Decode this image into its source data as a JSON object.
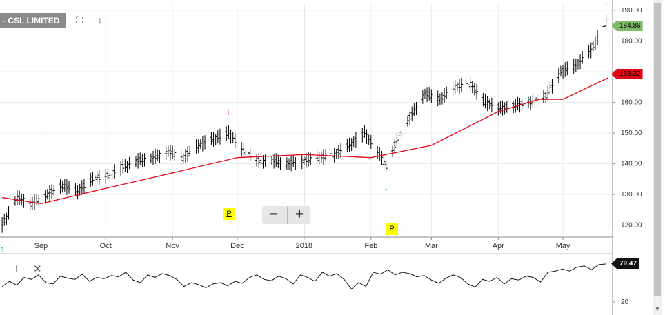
{
  "header": {
    "title": "- CSL LIMITED",
    "fullscreen_icon": "fullscreen-icon",
    "download_icon": "arrow-down-icon"
  },
  "zoom": {
    "minus_label": "−",
    "plus_label": "+"
  },
  "markers": [
    {
      "label": "P",
      "date": "Nov 27"
    },
    {
      "label": "P",
      "date": "Feb 13"
    }
  ],
  "price_tags": [
    {
      "label": "184.86",
      "color": "#7dbb69"
    },
    {
      "label": "168.32",
      "color": "#e30613"
    }
  ],
  "indicator": {
    "value_label": "79.47",
    "tick": "20",
    "icons": [
      "arrow-up-icon",
      "close-icon"
    ]
  },
  "colors": {
    "bars": "#000000",
    "moving_average": "#e30613",
    "signal_up": "#22c55e",
    "signal_down": "#ef6b6b"
  },
  "chart_data": {
    "type": "line",
    "title": "- CSL LIMITED",
    "x_ticks": [
      "Sep",
      "Oct",
      "Nov",
      "Dec",
      "2018",
      "Feb",
      "Mar",
      "Apr",
      "May"
    ],
    "y_ticks": [
      "190.00",
      "180.00",
      "170.00",
      "160.00",
      "150.00",
      "140.00",
      "130.00",
      "120.00"
    ],
    "ylim": [
      117,
      192
    ],
    "grid": true,
    "series": [
      {
        "style": "ohlc-bars",
        "x": [
          "Aug 14",
          "Aug 21",
          "Aug 28",
          "Sep 4",
          "Sep 11",
          "Sep 18",
          "Sep 25",
          "Oct 2",
          "Oct 9",
          "Oct 16",
          "Oct 23",
          "Oct 30",
          "Nov 6",
          "Nov 13",
          "Nov 20",
          "Nov 27",
          "Dec 4",
          "Dec 11",
          "Dec 18",
          "Dec 25",
          "Jan 1",
          "Jan 8",
          "Jan 15",
          "Jan 22",
          "Jan 29",
          "Feb 5",
          "Feb 8",
          "Feb 12",
          "Feb 19",
          "Feb 26",
          "Mar 5",
          "Mar 12",
          "Mar 19",
          "Mar 26",
          "Apr 2",
          "Apr 9",
          "Apr 16",
          "Apr 23",
          "Apr 30",
          "May 7",
          "May 14",
          "May 21"
        ],
        "values": [
          120,
          129,
          127,
          130,
          133,
          131,
          135,
          136,
          139,
          141,
          142,
          144,
          142,
          146,
          148,
          150,
          144,
          141,
          141,
          140,
          141,
          142,
          143,
          146,
          150,
          143,
          139,
          146,
          155,
          163,
          161,
          165,
          166,
          160,
          158,
          159,
          160,
          162,
          170,
          172,
          177,
          186
        ]
      },
      {
        "name": "",
        "style": "moving-average",
        "x": [
          "Aug 14",
          "Sep 1",
          "Oct 1",
          "Nov 1",
          "Dec 1",
          "Jan 1",
          "Feb 1",
          "Mar 1",
          "Apr 1",
          "Apr 20",
          "May 1",
          "May 22"
        ],
        "values": [
          129,
          127,
          132,
          137,
          142,
          143,
          142,
          146,
          157,
          161,
          161,
          168
        ]
      }
    ],
    "annotations": [
      {
        "type": "buy-arrow",
        "date": "Aug 14"
      },
      {
        "type": "sell-arrow",
        "date": "Nov 27"
      },
      {
        "type": "buy-arrow",
        "date": "Feb 8"
      },
      {
        "type": "sell-arrow",
        "date": "May 21"
      }
    ],
    "indicator_series": {
      "tick": "20",
      "last": "79.47",
      "values": [
        44,
        52,
        46,
        58,
        55,
        62,
        50,
        48,
        60,
        57,
        55,
        63,
        52,
        58,
        56,
        61,
        59,
        66,
        54,
        50,
        62,
        58,
        64,
        61,
        55,
        44,
        50,
        47,
        42,
        48,
        50,
        45,
        52,
        49,
        58,
        62,
        55,
        53,
        60,
        56,
        48,
        62,
        58,
        52,
        66,
        60,
        64,
        55,
        40,
        50,
        44,
        66,
        63,
        70,
        62,
        66,
        64,
        59,
        61,
        54,
        49,
        57,
        62,
        58,
        48,
        43,
        55,
        52,
        58,
        48,
        56,
        54,
        60,
        58,
        51,
        66,
        68,
        71,
        68,
        74,
        76,
        70,
        78,
        79
      ]
    }
  }
}
